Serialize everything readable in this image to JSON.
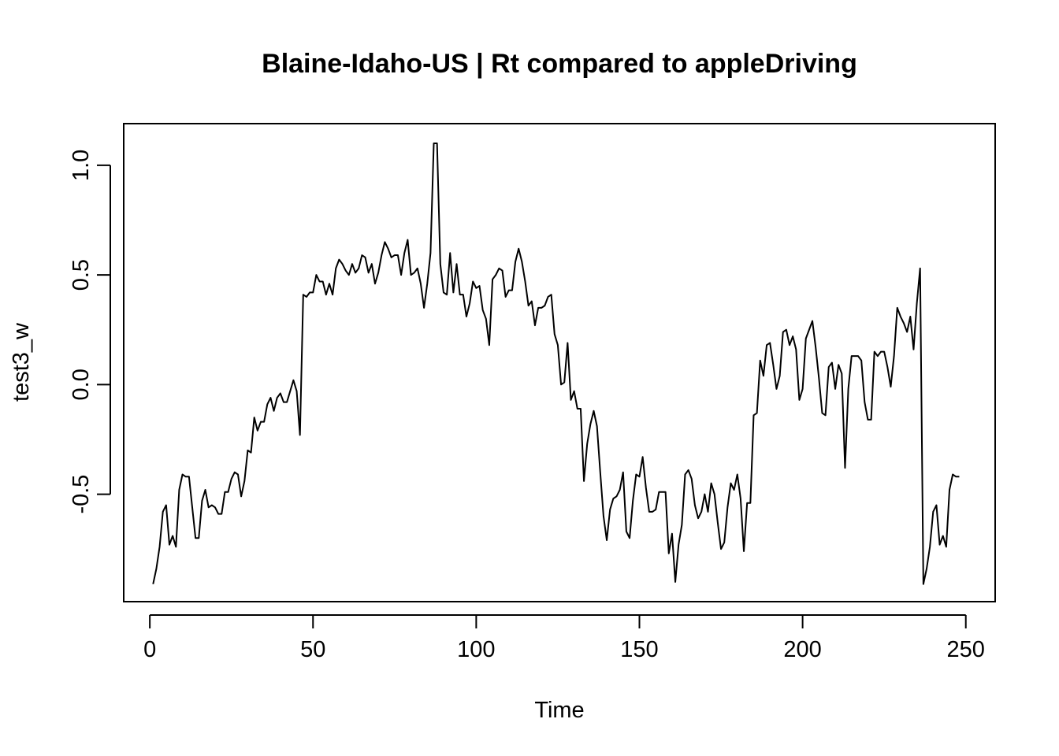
{
  "chart_data": {
    "type": "line",
    "title": "Blaine-Idaho-US | Rt compared to appleDriving",
    "xlabel": "Time",
    "ylabel": "test3_w",
    "xlim": [
      -8,
      259
    ],
    "ylim": [
      -0.99,
      1.19
    ],
    "x_ticks": [
      0,
      50,
      100,
      150,
      200,
      250
    ],
    "x_tick_labels": [
      "0",
      "50",
      "100",
      "150",
      "200",
      "250"
    ],
    "y_ticks": [
      -0.5,
      0.0,
      0.5,
      1.0
    ],
    "y_tick_labels": [
      "-0.5",
      "0.0",
      "0.5",
      "1.0"
    ],
    "grid": false,
    "legend": "none",
    "line_color": "#000000",
    "series": [
      {
        "x_start": 1,
        "values": [
          -0.91,
          -0.84,
          -0.74,
          -0.58,
          -0.55,
          -0.73,
          -0.69,
          -0.74,
          -0.48,
          -0.41,
          -0.42,
          -0.42,
          -0.56,
          -0.7,
          -0.7,
          -0.53,
          -0.48,
          -0.56,
          -0.55,
          -0.56,
          -0.59,
          -0.59,
          -0.49,
          -0.49,
          -0.43,
          -0.4,
          -0.41,
          -0.51,
          -0.44,
          -0.3,
          -0.31,
          -0.15,
          -0.21,
          -0.17,
          -0.17,
          -0.09,
          -0.06,
          -0.12,
          -0.06,
          -0.04,
          -0.08,
          -0.08,
          -0.03,
          0.02,
          -0.03,
          -0.23,
          0.41,
          0.4,
          0.42,
          0.42,
          0.5,
          0.47,
          0.47,
          0.41,
          0.46,
          0.41,
          0.53,
          0.57,
          0.55,
          0.52,
          0.5,
          0.55,
          0.51,
          0.53,
          0.59,
          0.58,
          0.51,
          0.55,
          0.46,
          0.51,
          0.59,
          0.65,
          0.62,
          0.58,
          0.59,
          0.59,
          0.5,
          0.6,
          0.66,
          0.5,
          0.51,
          0.53,
          0.46,
          0.35,
          0.46,
          0.6,
          1.1,
          1.1,
          0.55,
          0.42,
          0.41,
          0.6,
          0.42,
          0.55,
          0.41,
          0.41,
          0.31,
          0.37,
          0.47,
          0.44,
          0.45,
          0.34,
          0.3,
          0.18,
          0.48,
          0.5,
          0.53,
          0.52,
          0.4,
          0.43,
          0.43,
          0.56,
          0.62,
          0.56,
          0.47,
          0.36,
          0.38,
          0.27,
          0.35,
          0.35,
          0.36,
          0.4,
          0.41,
          0.23,
          0.18,
          0.0,
          0.01,
          0.19,
          -0.07,
          -0.03,
          -0.11,
          -0.11,
          -0.44,
          -0.27,
          -0.18,
          -0.12,
          -0.19,
          -0.4,
          -0.6,
          -0.71,
          -0.57,
          -0.52,
          -0.51,
          -0.48,
          -0.4,
          -0.67,
          -0.7,
          -0.53,
          -0.41,
          -0.42,
          -0.33,
          -0.47,
          -0.58,
          -0.58,
          -0.57,
          -0.49,
          -0.49,
          -0.49,
          -0.77,
          -0.68,
          -0.9,
          -0.73,
          -0.64,
          -0.41,
          -0.39,
          -0.43,
          -0.55,
          -0.61,
          -0.58,
          -0.5,
          -0.58,
          -0.45,
          -0.5,
          -0.63,
          -0.75,
          -0.72,
          -0.56,
          -0.45,
          -0.48,
          -0.41,
          -0.52,
          -0.76,
          -0.54,
          -0.54,
          -0.14,
          -0.13,
          0.11,
          0.04,
          0.18,
          0.19,
          0.09,
          -0.02,
          0.04,
          0.24,
          0.25,
          0.18,
          0.22,
          0.16,
          -0.07,
          -0.02,
          0.21,
          0.25,
          0.29,
          0.17,
          0.03,
          -0.13,
          -0.14,
          0.08,
          0.1,
          -0.02,
          0.09,
          0.05,
          -0.38,
          -0.02,
          0.13,
          0.13,
          0.13,
          0.11,
          -0.08,
          -0.16,
          -0.16,
          0.15,
          0.13,
          0.15,
          0.15,
          0.08,
          -0.01,
          0.13,
          0.35,
          0.31,
          0.28,
          0.24,
          0.31,
          0.16,
          0.37,
          0.53,
          -0.91,
          -0.84,
          -0.74,
          -0.58,
          -0.55,
          -0.73,
          -0.69,
          -0.74,
          -0.48,
          -0.41,
          -0.42,
          -0.42
        ]
      }
    ]
  }
}
